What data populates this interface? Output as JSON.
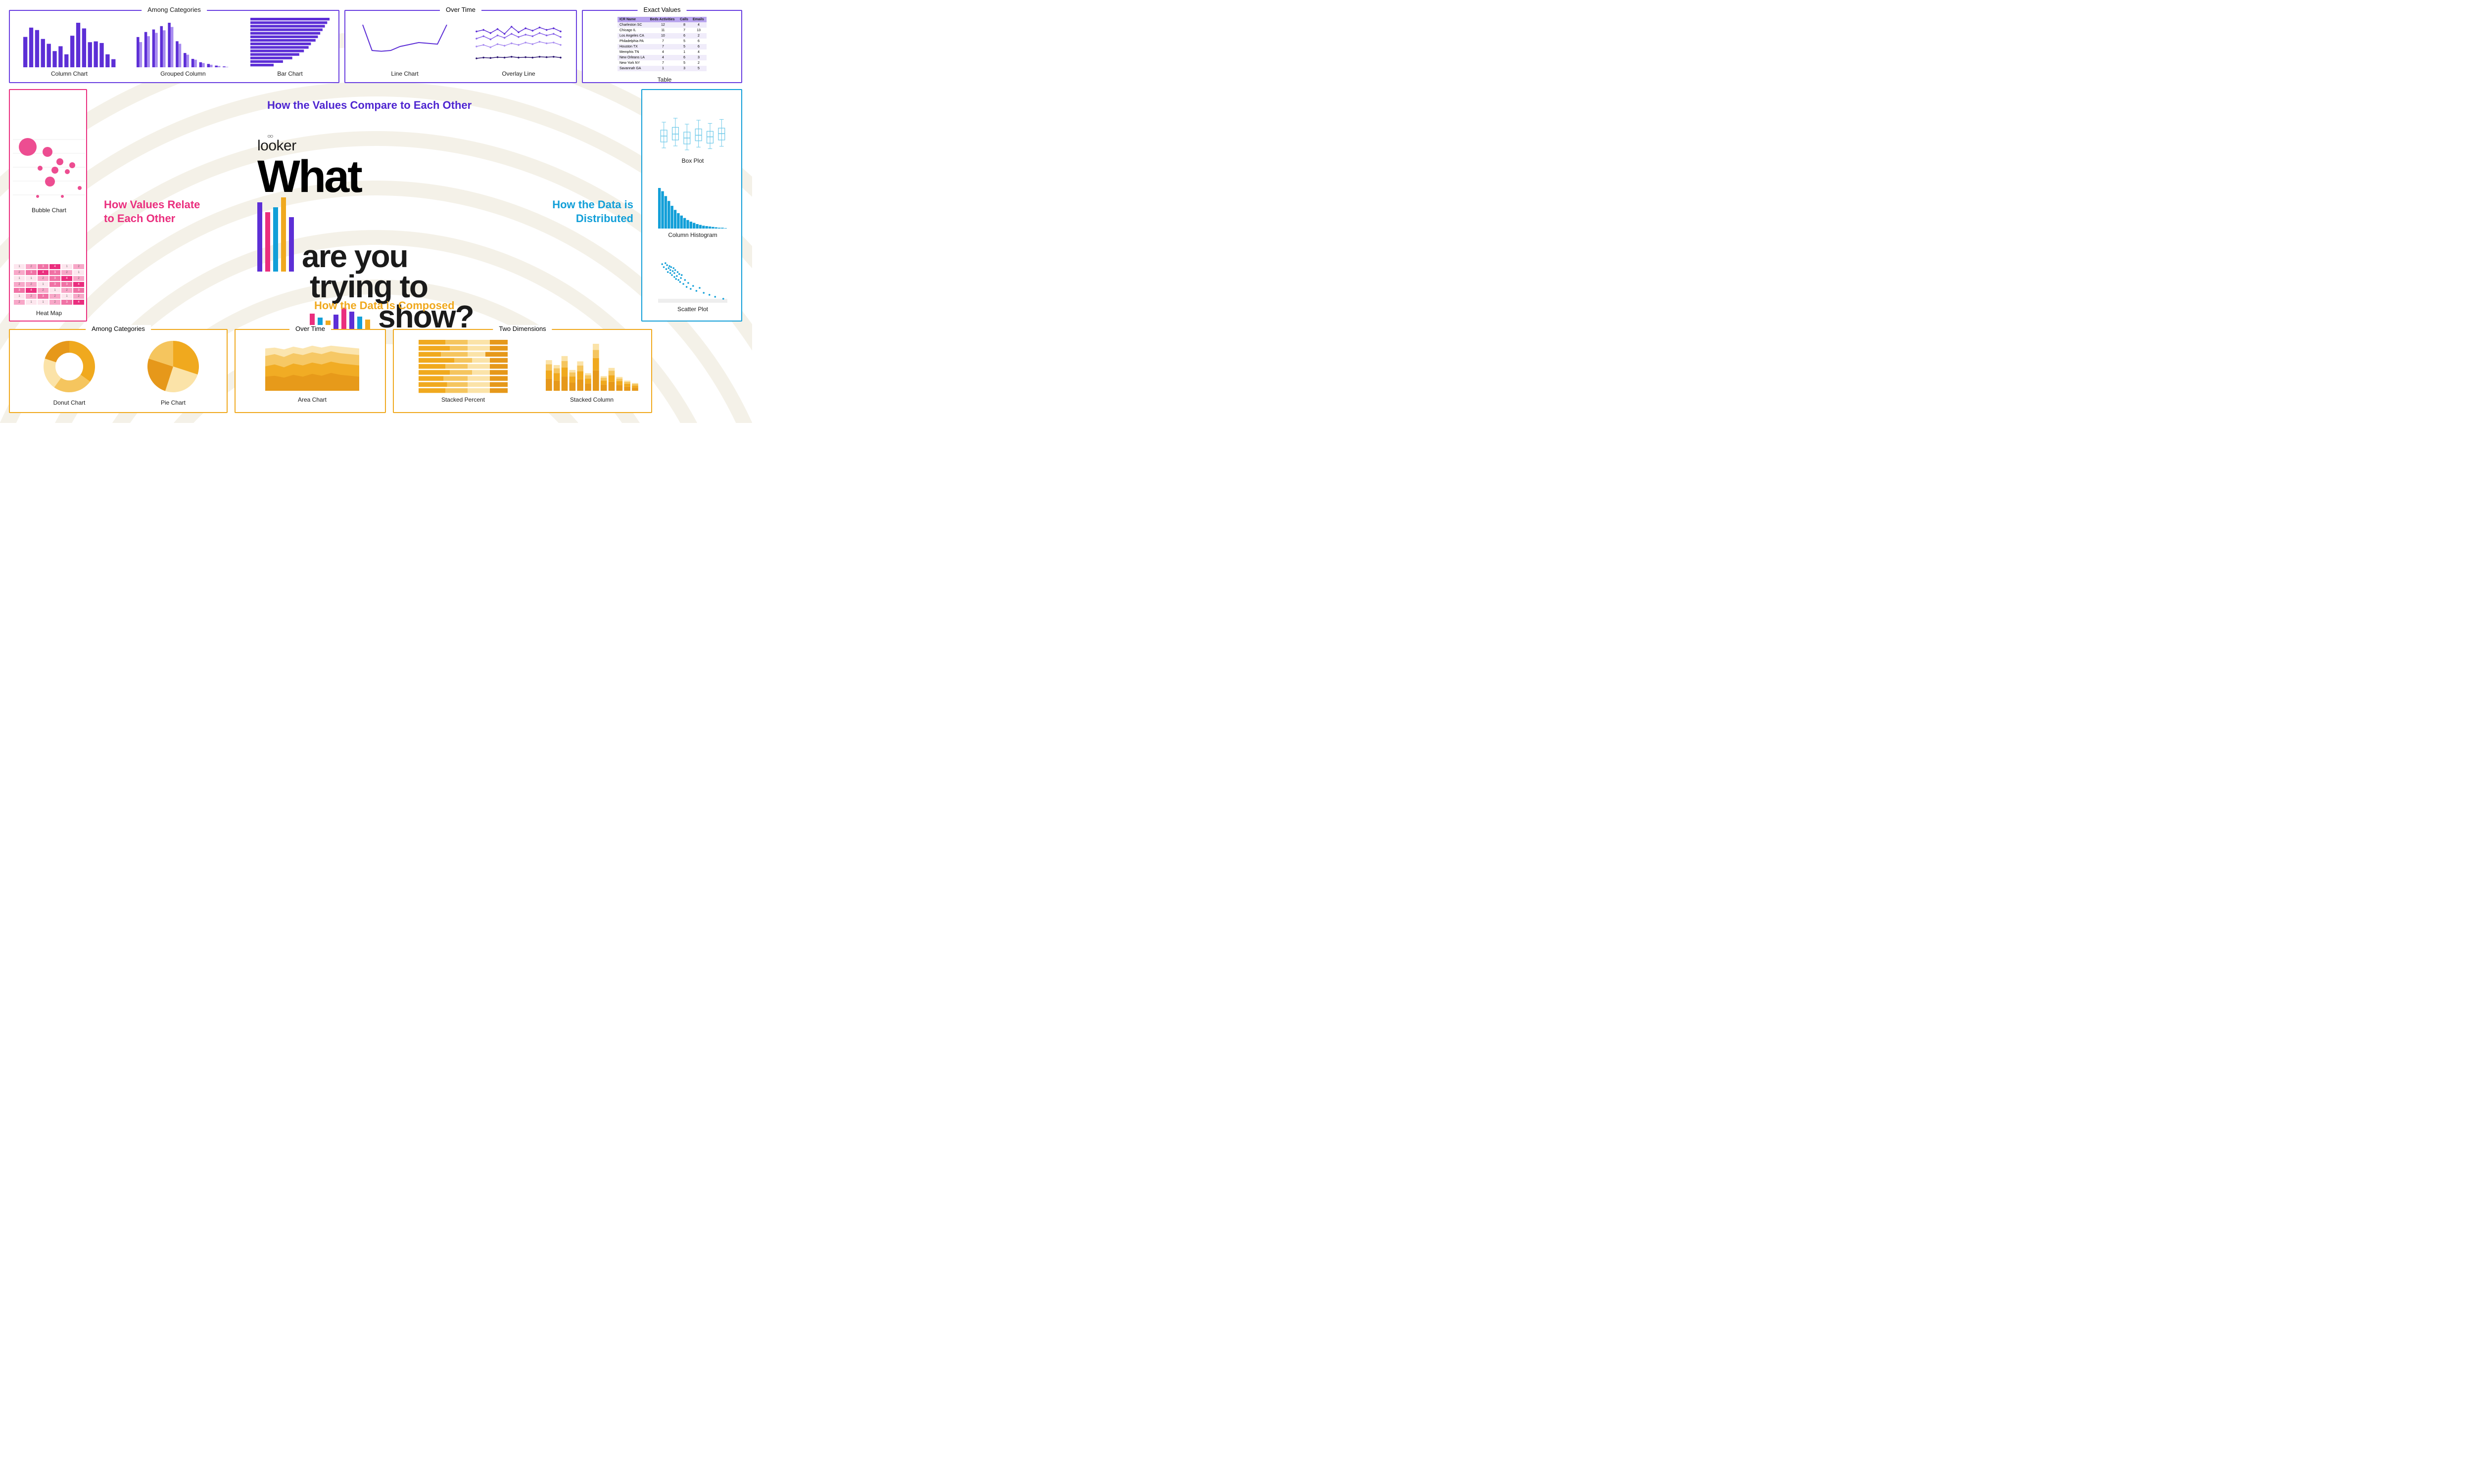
{
  "brand": "looker",
  "main_title": {
    "what": "What",
    "line1": "are you",
    "line2": "trying to",
    "line3": "show?"
  },
  "headings": {
    "compare": "How the Values Compare to Each Other",
    "relate": "How Values Relate to Each Other",
    "distributed": "How the Data is Distributed",
    "composed": "How the Data is Composed"
  },
  "colors": {
    "purple": "#5d2fd6",
    "purple_border": "#6a3fe0",
    "pink": "#ea2e7e",
    "pink_light": "#f8a7c8",
    "pink_mid": "#f072a5",
    "blue": "#129fd8",
    "blue_light": "#6cc8e8",
    "yellow": "#f0a91e",
    "yellow_mid": "#f5c55e",
    "yellow_light": "#fbe3a8",
    "text": "#1a1a1a",
    "bg": "#ffffff",
    "arc": "#f4f1e8"
  },
  "groups": {
    "compare_categories": "Among Categories",
    "compare_time": "Over Time",
    "compare_exact": "Exact Values",
    "compose_categories": "Among Categories",
    "compose_time": "Over Time",
    "compose_two": "Two Dimensions"
  },
  "charts": {
    "column": {
      "label": "Column Chart",
      "values": [
        75,
        98,
        92,
        70,
        58,
        40,
        52,
        32,
        78,
        110,
        96,
        62,
        64,
        60,
        32,
        20
      ],
      "bar_color": "#5d2fd6"
    },
    "grouped_column": {
      "label": "Grouped Column",
      "series": [
        [
          72,
          84,
          90,
          98,
          106,
          62,
          34,
          20,
          12,
          8,
          4,
          2
        ],
        [
          60,
          74,
          82,
          88,
          96,
          56,
          30,
          18,
          10,
          6,
          3,
          1
        ]
      ],
      "colors": [
        "#5d2fd6",
        "#a88cf0"
      ]
    },
    "bar": {
      "label": "Bar Chart",
      "values": [
        170,
        165,
        160,
        155,
        150,
        145,
        140,
        130,
        125,
        115,
        105,
        90,
        70,
        50
      ],
      "bar_color": "#5d2fd6"
    },
    "line": {
      "label": "Line Chart",
      "points": [
        95,
        30,
        28,
        30,
        40,
        45,
        50,
        48,
        46,
        95
      ],
      "color": "#5d2fd6"
    },
    "overlay_line": {
      "label": "Overlay Line",
      "series": [
        [
          78,
          82,
          74,
          84,
          72,
          90,
          76,
          86,
          80,
          88,
          82,
          86,
          78
        ],
        [
          60,
          66,
          58,
          68,
          62,
          72,
          64,
          70,
          66,
          74,
          68,
          72,
          64
        ],
        [
          40,
          44,
          38,
          46,
          42,
          48,
          44,
          50,
          46,
          52,
          48,
          50,
          44
        ],
        [
          10,
          12,
          11,
          13,
          12,
          14,
          12,
          13,
          12,
          14,
          13,
          14,
          12
        ]
      ],
      "colors": [
        "#5d2fd6",
        "#8661e8",
        "#a88cf0",
        "#2a1470"
      ]
    },
    "table": {
      "label": "Table",
      "headers": [
        "ICR Name",
        "Beds Activities",
        "Calls",
        "Emails"
      ],
      "rows": [
        [
          "Charleston SC",
          "12",
          "8",
          "4"
        ],
        [
          "Chicago IL",
          "11",
          "7",
          "13"
        ],
        [
          "Los Angeles CA",
          "10",
          "6",
          "2"
        ],
        [
          "Philadelphia PA",
          "7",
          "5",
          "6"
        ],
        [
          "Houston TX",
          "7",
          "5",
          "6"
        ],
        [
          "Memphis TN",
          "4",
          "1",
          "4"
        ],
        [
          "New Orleans LA",
          "4",
          "6",
          "3"
        ],
        [
          "New York NY",
          "7",
          "5",
          "2"
        ],
        [
          "Savannah GA",
          "1",
          "3",
          "5"
        ]
      ]
    },
    "bubble": {
      "label": "Bubble Chart",
      "bubbles": [
        {
          "x": 30,
          "y": 35,
          "r": 18
        },
        {
          "x": 70,
          "y": 45,
          "r": 10
        },
        {
          "x": 95,
          "y": 65,
          "r": 7
        },
        {
          "x": 55,
          "y": 78,
          "r": 5
        },
        {
          "x": 85,
          "y": 82,
          "r": 7
        },
        {
          "x": 110,
          "y": 85,
          "r": 5
        },
        {
          "x": 120,
          "y": 72,
          "r": 6
        },
        {
          "x": 75,
          "y": 105,
          "r": 10
        },
        {
          "x": 135,
          "y": 118,
          "r": 4
        },
        {
          "x": 50,
          "y": 135,
          "r": 3
        },
        {
          "x": 100,
          "y": 135,
          "r": 3
        }
      ],
      "color": "#ea2e7e"
    },
    "heatmap": {
      "label": "Heat Map",
      "cells": [
        [
          1,
          2,
          3,
          4,
          1,
          2
        ],
        [
          2,
          3,
          4,
          3,
          2,
          1
        ],
        [
          1,
          1,
          2,
          3,
          4,
          2
        ],
        [
          2,
          2,
          1,
          3,
          3,
          4
        ],
        [
          3,
          4,
          2,
          1,
          2,
          3
        ],
        [
          1,
          2,
          3,
          2,
          1,
          2
        ],
        [
          2,
          1,
          1,
          2,
          3,
          4
        ]
      ],
      "palette": [
        "#fde6ee",
        "#f8a7c8",
        "#f072a5",
        "#ea2e7e"
      ]
    },
    "boxplot": {
      "label": "Box Plot",
      "boxes": [
        {
          "min": 10,
          "q1": 25,
          "med": 40,
          "q3": 55,
          "max": 75
        },
        {
          "min": 15,
          "q1": 30,
          "med": 45,
          "q3": 62,
          "max": 85
        },
        {
          "min": 5,
          "q1": 20,
          "med": 35,
          "q3": 50,
          "max": 70
        },
        {
          "min": 12,
          "q1": 28,
          "med": 42,
          "q3": 58,
          "max": 80
        },
        {
          "min": 8,
          "q1": 22,
          "med": 38,
          "q3": 52,
          "max": 72
        },
        {
          "min": 14,
          "q1": 30,
          "med": 46,
          "q3": 60,
          "max": 82
        }
      ],
      "color": "#6cc8e8"
    },
    "histogram": {
      "label": "Column Histogram",
      "values": [
        100,
        92,
        80,
        68,
        56,
        46,
        38,
        32,
        26,
        21,
        17,
        14,
        11,
        9,
        7,
        6,
        5,
        4,
        3,
        2,
        2,
        1
      ],
      "color": "#129fd8"
    },
    "scatter": {
      "label": "Scatter Plot",
      "points": [
        [
          10,
          12
        ],
        [
          14,
          18
        ],
        [
          18,
          10
        ],
        [
          20,
          22
        ],
        [
          22,
          14
        ],
        [
          24,
          28
        ],
        [
          26,
          20
        ],
        [
          28,
          16
        ],
        [
          30,
          30
        ],
        [
          30,
          24
        ],
        [
          32,
          18
        ],
        [
          34,
          34
        ],
        [
          36,
          26
        ],
        [
          38,
          20
        ],
        [
          40,
          38
        ],
        [
          40,
          30
        ],
        [
          42,
          24
        ],
        [
          44,
          42
        ],
        [
          46,
          36
        ],
        [
          48,
          28
        ],
        [
          50,
          44
        ],
        [
          52,
          32
        ],
        [
          54,
          48
        ],
        [
          56,
          40
        ],
        [
          58,
          34
        ],
        [
          62,
          52
        ],
        [
          66,
          44
        ],
        [
          70,
          58
        ],
        [
          74,
          50
        ],
        [
          80,
          62
        ],
        [
          86,
          56
        ],
        [
          94,
          66
        ],
        [
          102,
          60
        ],
        [
          112,
          70
        ],
        [
          126,
          74
        ],
        [
          140,
          78
        ],
        [
          160,
          82
        ]
      ],
      "color": "#129fd8"
    },
    "donut": {
      "label": "Donut Chart",
      "slices": [
        35,
        25,
        20,
        20
      ],
      "colors": [
        "#f0a91e",
        "#f5c55e",
        "#fbe3a8",
        "#e6981a"
      ]
    },
    "pie": {
      "label": "Pie Chart",
      "slices": [
        30,
        25,
        25,
        20
      ],
      "colors": [
        "#f0a91e",
        "#fbe3a8",
        "#e6981a",
        "#f5c55e"
      ]
    },
    "area": {
      "label": "Area Chart",
      "layers": [
        [
          30,
          32,
          28,
          34,
          30,
          36,
          32,
          38,
          34,
          32,
          30
        ],
        [
          52,
          56,
          50,
          58,
          54,
          60,
          56,
          62,
          58,
          56,
          54
        ],
        [
          74,
          78,
          72,
          80,
          76,
          82,
          78,
          84,
          80,
          78,
          76
        ],
        [
          90,
          92,
          88,
          94,
          90,
          96,
          92,
          96,
          94,
          92,
          90
        ]
      ],
      "colors": [
        "#e6981a",
        "#f0a91e",
        "#f5c55e",
        "#fbe3a8"
      ]
    },
    "stacked_percent": {
      "label": "Stacked Percent",
      "rows": [
        [
          30,
          25,
          25,
          20
        ],
        [
          35,
          20,
          25,
          20
        ],
        [
          25,
          30,
          20,
          25
        ],
        [
          40,
          20,
          20,
          20
        ],
        [
          30,
          25,
          25,
          20
        ],
        [
          35,
          25,
          20,
          20
        ],
        [
          28,
          27,
          25,
          20
        ],
        [
          32,
          23,
          25,
          20
        ],
        [
          30,
          25,
          25,
          20
        ]
      ],
      "colors": [
        "#f0a91e",
        "#f5c55e",
        "#fbe3a8",
        "#e6981a"
      ]
    },
    "stacked_column": {
      "label": "Stacked Column",
      "columns": [
        [
          30,
          20,
          15,
          10
        ],
        [
          25,
          18,
          12,
          8
        ],
        [
          35,
          22,
          16,
          12
        ],
        [
          20,
          15,
          10,
          6
        ],
        [
          28,
          20,
          14,
          10
        ],
        [
          18,
          12,
          8,
          5
        ],
        [
          50,
          30,
          20,
          15
        ],
        [
          15,
          10,
          7,
          4
        ],
        [
          22,
          16,
          11,
          7
        ],
        [
          14,
          10,
          6,
          4
        ],
        [
          10,
          7,
          5,
          3
        ],
        [
          8,
          5,
          4,
          2
        ]
      ],
      "colors": [
        "#e6981a",
        "#f0a91e",
        "#f5c55e",
        "#fbe3a8"
      ]
    }
  },
  "decor_bars": {
    "set1": [
      {
        "h": 140,
        "c": "#5d2fd6"
      },
      {
        "h": 120,
        "c": "#ea2e7e"
      },
      {
        "h": 130,
        "c": "#129fd8"
      },
      {
        "h": 150,
        "c": "#f0a91e"
      },
      {
        "h": 110,
        "c": "#5d2fd6"
      }
    ],
    "set2": [
      {
        "h": 36,
        "c": "#ea2e7e"
      },
      {
        "h": 28,
        "c": "#129fd8"
      },
      {
        "h": 22,
        "c": "#f0a91e"
      },
      {
        "h": 34,
        "c": "#5d2fd6"
      },
      {
        "h": 48,
        "c": "#ea2e7e"
      },
      {
        "h": 40,
        "c": "#5d2fd6"
      },
      {
        "h": 30,
        "c": "#129fd8"
      },
      {
        "h": 24,
        "c": "#f0a91e"
      }
    ]
  }
}
